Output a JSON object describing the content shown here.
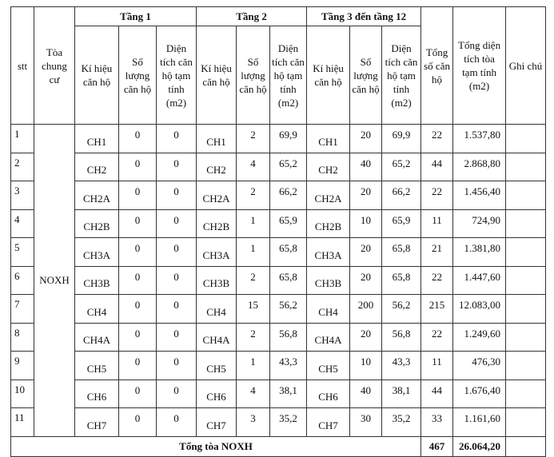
{
  "table": {
    "header": {
      "stt": "stt",
      "building": "Tòa chung cư",
      "groups": [
        "Tầng 1",
        "Tầng 2",
        "Tầng 3 đến tầng 12"
      ],
      "sub": [
        [
          "Kí hiệu căn hộ",
          "Số lượng căn hộ",
          "Diện tích căn hộ tạm tính (m2)"
        ],
        [
          "Kí hiệu căn hộ",
          "Số lượng căn hộ",
          "Diện tích căn hộ tạm tính (m2)"
        ],
        [
          "Kí hiệu căn hộ",
          "Số lượng căn hộ",
          "Diện tích căn hộ tạm tính (m2)"
        ]
      ],
      "total_units": "Tổng số căn hộ",
      "total_area": "Tổng diện tích tòa tạm tính (m2)",
      "note": "Ghi chú"
    },
    "building_name": "NOXH",
    "rows": [
      [
        "1",
        "CH1",
        "0",
        "0",
        "CH1",
        "2",
        "69,9",
        "CH1",
        "20",
        "69,9",
        "22",
        "1.537,80"
      ],
      [
        "2",
        "CH2",
        "0",
        "0",
        "CH2",
        "4",
        "65,2",
        "CH2",
        "40",
        "65,2",
        "44",
        "2.868,80"
      ],
      [
        "3",
        "CH2A",
        "0",
        "0",
        "CH2A",
        "2",
        "66,2",
        "CH2A",
        "20",
        "66,2",
        "22",
        "1.456,40"
      ],
      [
        "4",
        "CH2B",
        "0",
        "0",
        "CH2B",
        "1",
        "65,9",
        "CH2B",
        "10",
        "65,9",
        "11",
        "724,90"
      ],
      [
        "5",
        "CH3A",
        "0",
        "0",
        "CH3A",
        "1",
        "65,8",
        "CH3A",
        "20",
        "65,8",
        "21",
        "1.381,80"
      ],
      [
        "6",
        "CH3B",
        "0",
        "0",
        "CH3B",
        "2",
        "65,8",
        "CH3B",
        "20",
        "65,8",
        "22",
        "1.447,60"
      ],
      [
        "7",
        "CH4",
        "0",
        "0",
        "CH4",
        "15",
        "56,2",
        "CH4",
        "200",
        "56,2",
        "215",
        "12.083,00"
      ],
      [
        "8",
        "CH4A",
        "0",
        "0",
        "CH4A",
        "2",
        "56,8",
        "CH4A",
        "20",
        "56,8",
        "22",
        "1.249,60"
      ],
      [
        "9",
        "CH5",
        "0",
        "0",
        "CH5",
        "1",
        "43,3",
        "CH5",
        "10",
        "43,3",
        "11",
        "476,30"
      ],
      [
        "10",
        "CH6",
        "0",
        "0",
        "CH6",
        "4",
        "38,1",
        "CH6",
        "40",
        "38,1",
        "44",
        "1.676,40"
      ],
      [
        "11",
        "CH7",
        "0",
        "0",
        "CH7",
        "3",
        "35,2",
        "CH7",
        "30",
        "35,2",
        "33",
        "1.161,60"
      ]
    ],
    "footer": {
      "label": "Tổng tòa NOXH",
      "total_units": "467",
      "total_area": "26.064,20"
    }
  }
}
